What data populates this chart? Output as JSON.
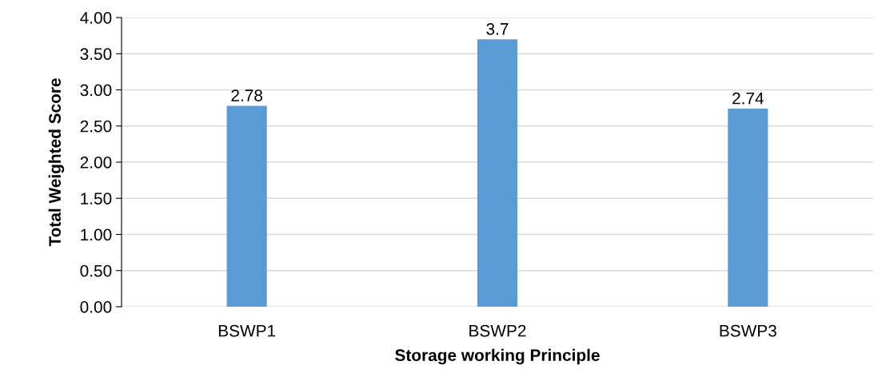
{
  "chart_data": {
    "type": "bar",
    "xlabel": "Storage working Principle",
    "ylabel": "Total Weighted Score",
    "categories": [
      "BSWP1",
      "BSWP2",
      "BSWP3"
    ],
    "values": [
      2.78,
      3.7,
      2.74
    ],
    "color": "#5b9bd5",
    "ylim": [
      0,
      4
    ],
    "yticks": [
      {
        "value": 0,
        "label": "0.00"
      },
      {
        "value": 0.5,
        "label": "0.50"
      },
      {
        "value": 1,
        "label": "1.00"
      },
      {
        "value": 1.5,
        "label": "1.50"
      },
      {
        "value": 2,
        "label": "2.00"
      },
      {
        "value": 2.5,
        "label": "2.50"
      },
      {
        "value": 3,
        "label": "3.00"
      },
      {
        "value": 3.5,
        "label": "3.50"
      },
      {
        "value": 4,
        "label": "4.00"
      }
    ],
    "grid": "y",
    "data_labels": true
  }
}
